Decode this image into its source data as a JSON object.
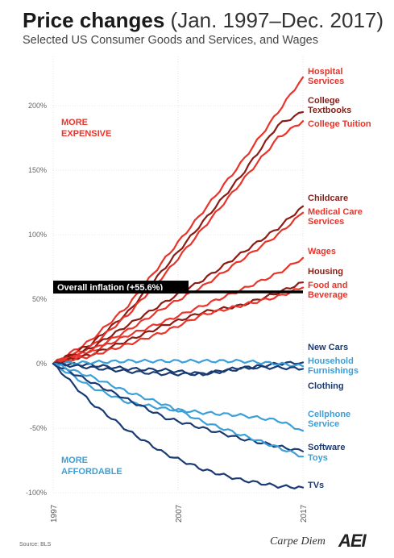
{
  "header": {
    "title_bold": "Price changes",
    "title_light": " (Jan. 1997–Dec. 2017)",
    "subtitle": "Selected US Consumer Goods and Services, and Wages"
  },
  "annotations": {
    "more_expensive_1": "MORE",
    "more_expensive_2": "EXPENSIVE",
    "more_affordable_1": "MORE",
    "more_affordable_2": "AFFORDABLE",
    "overall_inflation": "Overall inflation (+55.6%)"
  },
  "footer": {
    "source": "Source: BLS",
    "credit": "Carpe Diem",
    "logo": "AEI"
  },
  "colors": {
    "red": "#e8342a",
    "dark_red": "#8b1c14",
    "light_blue": "#3b9fd8",
    "dark_blue": "#1a3a72",
    "inflation": "#000000"
  },
  "chart_data": {
    "type": "line",
    "title": "Price changes (Jan. 1997–Dec. 2017)",
    "subtitle": "Selected US Consumer Goods and Services, and Wages",
    "x": [
      1997,
      2000,
      2003,
      2006,
      2009,
      2012,
      2015,
      2017
    ],
    "xticks": [
      "1997",
      "2007",
      "2017"
    ],
    "yticks": [
      "200%",
      "150%",
      "100%",
      "50%",
      "0%",
      "-50%",
      "-100%"
    ],
    "ytick_values": [
      200,
      150,
      100,
      50,
      0,
      -50,
      -100
    ],
    "ylim": [
      -100,
      225
    ],
    "xlim": [
      1997,
      2017
    ],
    "overall_inflation": 55.6,
    "series": [
      {
        "name": "Hospital Services",
        "color": "#e8342a",
        "values": [
          0,
          18,
          45,
          82,
          118,
          155,
          195,
          222
        ]
      },
      {
        "name": "College Textbooks",
        "color": "#8b1c14",
        "values": [
          0,
          15,
          40,
          75,
          110,
          145,
          185,
          195
        ]
      },
      {
        "name": "College Tuition",
        "color": "#e8342a",
        "values": [
          0,
          13,
          38,
          70,
          105,
          140,
          175,
          188
        ]
      },
      {
        "name": "Childcare",
        "color": "#8b1c14",
        "values": [
          0,
          12,
          30,
          48,
          65,
          85,
          105,
          122
        ]
      },
      {
        "name": "Medical Care Services",
        "color": "#e8342a",
        "values": [
          0,
          10,
          26,
          44,
          60,
          80,
          100,
          117
        ]
      },
      {
        "name": "Wages",
        "color": "#e8342a",
        "values": [
          0,
          9,
          22,
          33,
          45,
          57,
          70,
          82
        ]
      },
      {
        "name": "Housing",
        "color": "#8b1c14",
        "values": [
          0,
          7,
          18,
          30,
          40,
          45,
          55,
          63
        ]
      },
      {
        "name": "Food and Beverage",
        "color": "#e8342a",
        "values": [
          0,
          6,
          15,
          25,
          38,
          45,
          52,
          59
        ]
      },
      {
        "name": "New Cars",
        "color": "#1a3a72",
        "values": [
          0,
          -1,
          -4,
          -5,
          -8,
          -4,
          0,
          1
        ]
      },
      {
        "name": "Household Furnishings",
        "color": "#3b9fd8",
        "values": [
          0,
          1,
          2,
          2,
          2,
          2,
          0,
          -2
        ]
      },
      {
        "name": "Clothing",
        "color": "#1a3a72",
        "values": [
          0,
          -3,
          -6,
          -8,
          -8,
          -3,
          -3,
          -4
        ]
      },
      {
        "name": "Cellphone Service",
        "color": "#3b9fd8",
        "values": [
          0,
          -18,
          -30,
          -35,
          -38,
          -40,
          -44,
          -52
        ]
      },
      {
        "name": "Software",
        "color": "#1a3a72",
        "values": [
          0,
          -14,
          -28,
          -42,
          -50,
          -58,
          -64,
          -68
        ]
      },
      {
        "name": "Toys",
        "color": "#3b9fd8",
        "values": [
          0,
          -10,
          -22,
          -32,
          -45,
          -55,
          -65,
          -72
        ]
      },
      {
        "name": "TVs",
        "color": "#1a3a72",
        "values": [
          0,
          -30,
          -52,
          -70,
          -82,
          -90,
          -95,
          -96
        ]
      }
    ],
    "labels": [
      {
        "series": "Hospital Services",
        "lines": [
          "Hospital",
          "Services"
        ],
        "color": "#e8342a"
      },
      {
        "series": "College Textbooks",
        "lines": [
          "College",
          "Textbooks"
        ],
        "color": "#8b1c14"
      },
      {
        "series": "College Tuition",
        "lines": [
          "College Tuition"
        ],
        "color": "#e8342a"
      },
      {
        "series": "Childcare",
        "lines": [
          "Childcare"
        ],
        "color": "#8b1c14"
      },
      {
        "series": "Medical Care Services",
        "lines": [
          "Medical Care",
          "Services"
        ],
        "color": "#e8342a"
      },
      {
        "series": "Wages",
        "lines": [
          "Wages"
        ],
        "color": "#e8342a"
      },
      {
        "series": "Housing",
        "lines": [
          "Housing"
        ],
        "color": "#8b1c14"
      },
      {
        "series": "Food and Beverage",
        "lines": [
          "Food and",
          "Beverage"
        ],
        "color": "#e8342a"
      },
      {
        "series": "New Cars",
        "lines": [
          "New Cars"
        ],
        "color": "#1a3a72"
      },
      {
        "series": "Household Furnishings",
        "lines": [
          "Household",
          "Furnishings"
        ],
        "color": "#3b9fd8"
      },
      {
        "series": "Clothing",
        "lines": [
          "Clothing"
        ],
        "color": "#1a3a72"
      },
      {
        "series": "Cellphone Service",
        "lines": [
          "Cellphone",
          "Service"
        ],
        "color": "#3b9fd8"
      },
      {
        "series": "Software",
        "lines": [
          "Software"
        ],
        "color": "#1a3a72"
      },
      {
        "series": "Toys",
        "lines": [
          "Toys"
        ],
        "color": "#3b9fd8"
      },
      {
        "series": "TVs",
        "lines": [
          "TVs"
        ],
        "color": "#1a3a72"
      }
    ]
  }
}
